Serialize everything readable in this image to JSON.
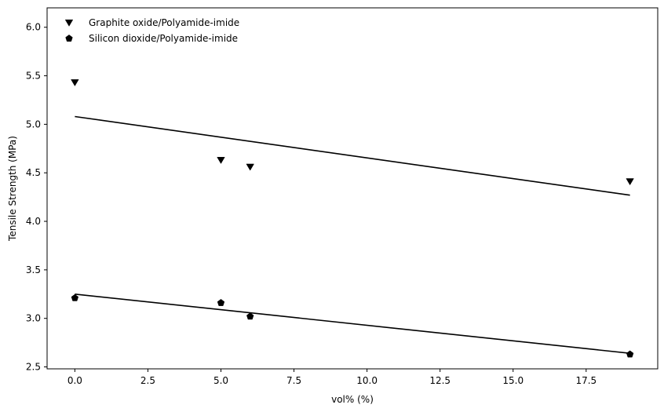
{
  "chart_data": {
    "type": "scatter",
    "xlabel": "vol% (%)",
    "ylabel": "Tensile Strength (MPa)",
    "xlim": [
      -0.95,
      19.95
    ],
    "ylim": [
      2.48,
      6.2
    ],
    "xticks": [
      0.0,
      2.5,
      5.0,
      7.5,
      10.0,
      12.5,
      15.0,
      17.5
    ],
    "xtick_labels": [
      "0.0",
      "2.5",
      "5.0",
      "7.5",
      "10.0",
      "12.5",
      "15.0",
      "17.5"
    ],
    "yticks": [
      2.5,
      3.0,
      3.5,
      4.0,
      4.5,
      5.0,
      5.5,
      6.0
    ],
    "ytick_labels": [
      "2.5",
      "3.0",
      "3.5",
      "4.0",
      "4.5",
      "5.0",
      "5.5",
      "6.0"
    ],
    "grid": false,
    "legend_position": "top-left",
    "series": [
      {
        "name": "Graphite oxide/Polyamide-imide",
        "marker": "triangle-down",
        "color": "#000000",
        "x": [
          0,
          5,
          6,
          19
        ],
        "y": [
          5.43,
          4.63,
          4.56,
          4.41
        ],
        "fit_line": {
          "x": [
            0,
            19
          ],
          "y": [
            5.08,
            4.27
          ]
        }
      },
      {
        "name": "Silicon dioxide/Polyamide-imide",
        "marker": "pentagon",
        "color": "#000000",
        "x": [
          0,
          5,
          6,
          19
        ],
        "y": [
          3.21,
          3.16,
          3.02,
          2.63
        ],
        "fit_line": {
          "x": [
            0,
            19
          ],
          "y": [
            3.25,
            2.64
          ]
        }
      }
    ]
  }
}
